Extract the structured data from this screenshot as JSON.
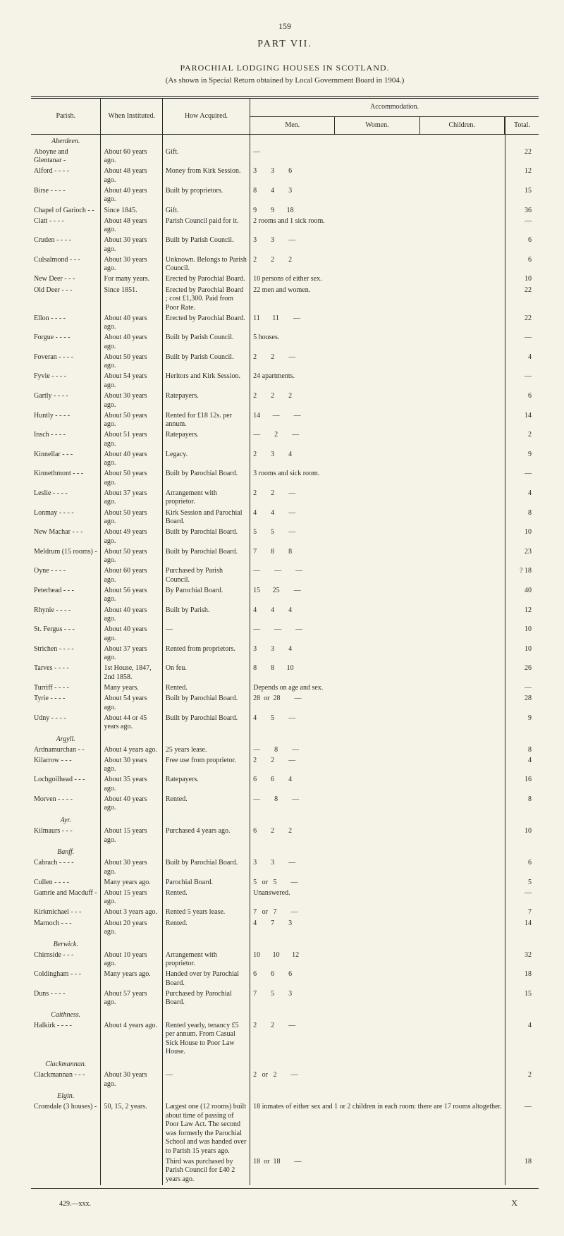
{
  "page_number": "159",
  "part_title": "PART VII.",
  "heading": "PAROCHIAL LODGING HOUSES IN SCOTLAND.",
  "subheading": "(As shown in Special Return obtained by Local Government Board in 1904.)",
  "columns": {
    "parish": "Parish.",
    "instituted": "When Instituted.",
    "acquired": "How Acquired.",
    "accommodation": "Accommodation.",
    "men": "Men.",
    "women": "Women.",
    "children": "Children.",
    "total": "Total."
  },
  "counties": [
    {
      "name": "Aberdeen.",
      "rows": [
        {
          "parish": "Aboyne and Glentanar -",
          "inst": "About 60 years ago.",
          "acq": "Gift.",
          "accom": "—",
          "total": "22"
        },
        {
          "parish": "Alford -  -  -  -",
          "inst": "About 48 years ago.",
          "acq": "Money from Kirk Session.",
          "accom": "3        3        6",
          "total": "12"
        },
        {
          "parish": "Birse  -  -  -  -",
          "inst": "About 40 years ago.",
          "acq": "Built by proprietors.",
          "accom": "8        4        3",
          "total": "15"
        },
        {
          "parish": "Chapel of Garioch -  -",
          "inst": "Since 1845.",
          "acq": "Gift.",
          "accom": "9        9       18",
          "total": "36"
        },
        {
          "parish": "Clatt  -  -  -  -",
          "inst": "About 48 years ago.",
          "acq": "Parish Council paid for it.",
          "accom": "2 rooms and 1 sick room.",
          "total": "—"
        },
        {
          "parish": "Cruden -  -  -  -",
          "inst": "About 30 years ago.",
          "acq": "Built by Parish Council.",
          "accom": "3        3        —",
          "total": "6"
        },
        {
          "parish": "Culsalmond -  -  -",
          "inst": "About 30 years ago.",
          "acq": "Unknown. Belongs to Parish Council.",
          "accom": "2        2        2",
          "total": "6"
        },
        {
          "parish": "New Deer  -  -  -",
          "inst": "For many years.",
          "acq": "Erected by Parochial Board.",
          "accom": "10 persons of either sex.",
          "total": "10"
        },
        {
          "parish": "Old Deer  -  -  -",
          "inst": "Since 1851.",
          "acq": "Erected by Parochial Board ; cost £1,300. Paid from Poor Rate.",
          "accom": "22 men and women.",
          "total": "22"
        },
        {
          "parish": "Ellon  -  -  -  -",
          "inst": "About 40 years ago.",
          "acq": "Erected by Parochial Board.",
          "accom": "11       11        —",
          "total": "22"
        },
        {
          "parish": "Forgue -  -  -  -",
          "inst": "About 40 years ago.",
          "acq": "Built by Parish Council.",
          "accom": "5 houses.",
          "total": "—"
        },
        {
          "parish": "Foveran -  -  -  -",
          "inst": "About 50 years ago.",
          "acq": "Built by Parish Council.",
          "accom": "2        2        —",
          "total": "4"
        },
        {
          "parish": "Fyvie  -  -  -  -",
          "inst": "About 54 years ago.",
          "acq": "Heritors and Kirk Session.",
          "accom": "24 apartments.",
          "total": "—"
        },
        {
          "parish": "Gartly -  -  -  -",
          "inst": "About 30 years ago.",
          "acq": "Ratepayers.",
          "accom": "2        2        2",
          "total": "6"
        },
        {
          "parish": "Huntly -  -  -  -",
          "inst": "About 50 years ago.",
          "acq": "Rented for £18 12s. per annum.",
          "accom": "14       —        —",
          "total": "14"
        },
        {
          "parish": "Insch  -  -  -  -",
          "inst": "About 51 years ago.",
          "acq": "Ratepayers.",
          "accom": "—        2        —",
          "total": "2"
        },
        {
          "parish": "Kinnellar  -  -  -",
          "inst": "About 40 years ago.",
          "acq": "Legacy.",
          "accom": "2        3        4",
          "total": "9"
        },
        {
          "parish": "Kinnethmont -  -  -",
          "inst": "About 50 years ago.",
          "acq": "Built by Parochial Board.",
          "accom": "3 rooms and sick room.",
          "total": "—"
        },
        {
          "parish": "Leslie  -  -  -  -",
          "inst": "About 37 years ago.",
          "acq": "Arrangement with proprietor.",
          "accom": "2        2        —",
          "total": "4"
        },
        {
          "parish": "Lonmay -  -  -  -",
          "inst": "About 50 years ago.",
          "acq": "Kirk Session and Parochial Board.",
          "accom": "4        4        —",
          "total": "8"
        },
        {
          "parish": "New Machar -  -  -",
          "inst": "About 49 years ago.",
          "acq": "Built by Parochial Board.",
          "accom": "5        5        —",
          "total": "10"
        },
        {
          "parish": "Meldrum (15 rooms)  -",
          "inst": "About 50 years ago.",
          "acq": "Built by Parochial Board.",
          "accom": "7        8        8",
          "total": "23"
        },
        {
          "parish": "Oyne  -  -  -  -",
          "inst": "About 60 years ago.",
          "acq": "Purchased by Parish Council.",
          "accom": "—        —        —",
          "total": "? 18"
        },
        {
          "parish": "Peterhead  -  -  -",
          "inst": "About 56 years ago.",
          "acq": "By Parochial Board.",
          "accom": "15       25        —",
          "total": "40"
        },
        {
          "parish": "Rhynie -  -  -  -",
          "inst": "About 40 years ago.",
          "acq": "Built by Parish.",
          "accom": "4        4        4",
          "total": "12"
        },
        {
          "parish": "St. Fergus  -  -  -",
          "inst": "About 40 years ago.",
          "acq": "—",
          "accom": "—        —        —",
          "total": "10"
        },
        {
          "parish": "Strichen -  -  -  -",
          "inst": "About 37 years ago.",
          "acq": "Rented from proprietors.",
          "accom": "3        3        4",
          "total": "10"
        },
        {
          "parish": "Tarves -  -  -  -",
          "inst": "1st House, 1847, 2nd 1858.",
          "acq": "On feu.",
          "accom": "8        8       10",
          "total": "26"
        },
        {
          "parish": "Turriff  -  -  -  -",
          "inst": "Many years.",
          "acq": "Rented.",
          "accom": "Depends on age and sex.",
          "total": "—"
        },
        {
          "parish": "Tyrie  -  -  -  -",
          "inst": "About 54 years ago.",
          "acq": "Built by Parochial Board.",
          "accom": "28  or  28        —",
          "total": "28"
        },
        {
          "parish": "Udny  -  -  -  -",
          "inst": "About 44 or 45 years ago.",
          "acq": "Built by Parochial Board.",
          "accom": "4        5        —",
          "total": "9"
        }
      ]
    },
    {
      "name": "Argyll.",
      "rows": [
        {
          "parish": "Ardnamurchan  -  -",
          "inst": "About 4 years ago.",
          "acq": "25 years lease.",
          "accom": "—        8        —",
          "total": "8"
        },
        {
          "parish": "Kilarrow  -  -  -",
          "inst": "About 30 years ago.",
          "acq": "Free use from proprietor.",
          "accom": "2        2        —",
          "total": "4"
        },
        {
          "parish": "Lochgoilhead -  -  -",
          "inst": "About 35 years ago.",
          "acq": "Ratepayers.",
          "accom": "6        6        4",
          "total": "16"
        },
        {
          "parish": "Morven -  -  -  -",
          "inst": "About 40 years ago.",
          "acq": "Rented.",
          "accom": "—        8        —",
          "total": "8"
        }
      ]
    },
    {
      "name": "Ayr.",
      "rows": [
        {
          "parish": "Kilmaurs  -  -  -",
          "inst": "About 15 years ago.",
          "acq": "Purchased 4 years ago.",
          "accom": "6        2        2",
          "total": "10"
        }
      ]
    },
    {
      "name": "Banff.",
      "rows": [
        {
          "parish": "Cabrach -  -  -  -",
          "inst": "About 30 years ago.",
          "acq": "Built by Parochial Board.",
          "accom": "3        3        —",
          "total": "6"
        },
        {
          "parish": "Cullen  -  -  -  -",
          "inst": "Many years ago.",
          "acq": "Parochial Board.",
          "accom": "5   or   5        —",
          "total": "5"
        },
        {
          "parish": "Gamrie and Macduff  -",
          "inst": "About 15 years ago.",
          "acq": "Rented.",
          "accom": "Unanswered.",
          "total": "—"
        },
        {
          "parish": "Kirkmichael  -  -  -",
          "inst": "About 3 years ago.",
          "acq": "Rented 5 years lease.",
          "accom": "7   or   7        —",
          "total": "7"
        },
        {
          "parish": "Marnoch  -  -  -",
          "inst": "About 20 years ago.",
          "acq": "Rented.",
          "accom": "4        7        3",
          "total": "14"
        }
      ]
    },
    {
      "name": "Berwick.",
      "rows": [
        {
          "parish": "Chirnside  -  -  -",
          "inst": "About 10 years ago.",
          "acq": "Arrangement with proprietor.",
          "accom": "10       10       12",
          "total": "32"
        },
        {
          "parish": "Coldingham -  -  -",
          "inst": "Many years ago.",
          "acq": "Handed over by Parochial Board.",
          "accom": "6        6        6",
          "total": "18"
        },
        {
          "parish": "Duns  -  -  -  -",
          "inst": "About 57 years ago.",
          "acq": "Purchased by Parochial Board.",
          "accom": "7        5        3",
          "total": "15"
        }
      ]
    },
    {
      "name": "Caithness.",
      "rows": [
        {
          "parish": "Halkirk -  -  -  -",
          "inst": "About 4 years ago.",
          "acq": "Rented yearly, tenancy £5 per annum. From Casual Sick House to Poor Law House.",
          "accom": "2        2        —",
          "total": "4"
        }
      ]
    },
    {
      "name": "Clackmannan.",
      "rows": [
        {
          "parish": "Clackmannan -  -  -",
          "inst": "About 30 years ago.",
          "acq": "—",
          "accom": "2   or   2        —",
          "total": "2"
        }
      ]
    },
    {
      "name": "Elgin.",
      "rows": [
        {
          "parish": "Cromdale (3 houses)  -",
          "inst": "50, 15, 2 years.",
          "acq": "Largest one (12 rooms) built about time of passing of Poor Law Act. The second was formerly the Parochial School and was handed over to Parish 15 years ago.",
          "accom": "18 inmates of either sex and 1 or 2 children in each room: there are 17 rooms altogether.",
          "total": "—"
        },
        {
          "parish": "",
          "inst": "",
          "acq": "Third was purchased by Parish Council for £40 2 years ago.",
          "accom": "18  or  18        —",
          "total": "18"
        }
      ]
    }
  ],
  "footer_left": "429.—xxx.",
  "footer_right": "X"
}
